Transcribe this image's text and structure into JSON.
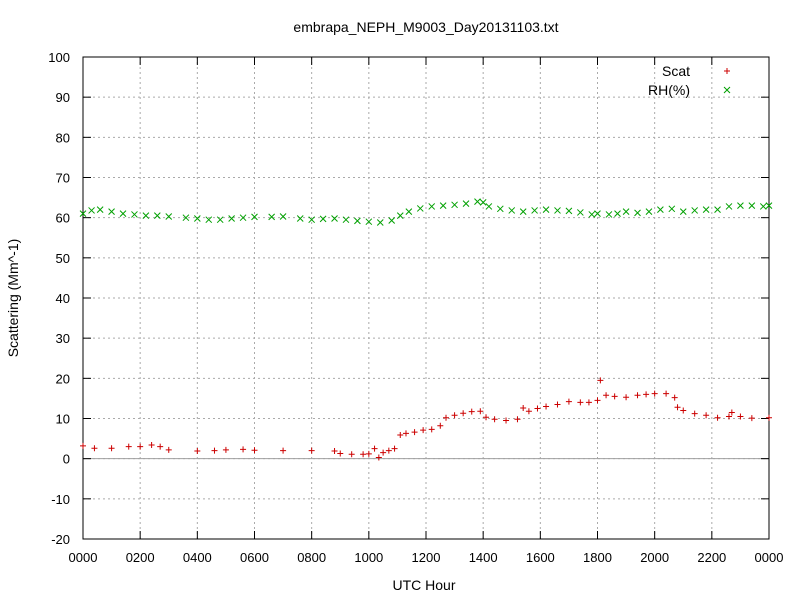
{
  "chart_data": {
    "type": "scatter",
    "title": "embrapa_NEPH_M9003_Day20131103.txt",
    "xlabel": "UTC Hour",
    "ylabel": "Scattering (Mm^-1)",
    "xlim": [
      0,
      2400
    ],
    "ylim": [
      -20,
      100
    ],
    "x_ticks": [
      "0000",
      "0200",
      "0400",
      "0600",
      "0800",
      "1000",
      "1200",
      "1400",
      "1600",
      "1800",
      "2000",
      "2200",
      "0000"
    ],
    "y_ticks": [
      "-20",
      "-10",
      "0",
      "10",
      "20",
      "30",
      "40",
      "50",
      "60",
      "70",
      "80",
      "90",
      "100"
    ],
    "grid": true,
    "zero_line": true,
    "legend_position": "top-right",
    "series": [
      {
        "name": "Scat",
        "marker": "+",
        "color": "#cc0000",
        "points": [
          [
            0,
            3.2
          ],
          [
            40,
            2.6
          ],
          [
            100,
            2.6
          ],
          [
            160,
            3.0
          ],
          [
            200,
            3.0
          ],
          [
            240,
            3.4
          ],
          [
            270,
            3.0
          ],
          [
            300,
            2.2
          ],
          [
            400,
            1.9
          ],
          [
            460,
            2.0
          ],
          [
            500,
            2.2
          ],
          [
            560,
            2.3
          ],
          [
            600,
            2.1
          ],
          [
            700,
            2.0
          ],
          [
            800,
            2.0
          ],
          [
            880,
            1.9
          ],
          [
            900,
            1.3
          ],
          [
            940,
            1.1
          ],
          [
            980,
            1.1
          ],
          [
            1000,
            1.2
          ],
          [
            1020,
            2.5
          ],
          [
            1035,
            0.3
          ],
          [
            1050,
            1.5
          ],
          [
            1070,
            2.0
          ],
          [
            1090,
            2.5
          ],
          [
            1110,
            5.9
          ],
          [
            1130,
            6.3
          ],
          [
            1160,
            6.6
          ],
          [
            1190,
            7.1
          ],
          [
            1220,
            7.3
          ],
          [
            1250,
            8.2
          ],
          [
            1270,
            10.2
          ],
          [
            1300,
            10.8
          ],
          [
            1330,
            11.3
          ],
          [
            1360,
            11.7
          ],
          [
            1390,
            11.8
          ],
          [
            1410,
            10.3
          ],
          [
            1440,
            9.8
          ],
          [
            1480,
            9.5
          ],
          [
            1520,
            9.8
          ],
          [
            1540,
            12.6
          ],
          [
            1560,
            11.8
          ],
          [
            1590,
            12.5
          ],
          [
            1620,
            13.0
          ],
          [
            1660,
            13.5
          ],
          [
            1700,
            14.2
          ],
          [
            1740,
            14.0
          ],
          [
            1770,
            14.0
          ],
          [
            1800,
            14.5
          ],
          [
            1810,
            19.5
          ],
          [
            1830,
            15.8
          ],
          [
            1860,
            15.5
          ],
          [
            1900,
            15.3
          ],
          [
            1940,
            15.8
          ],
          [
            1970,
            16.0
          ],
          [
            2000,
            16.2
          ],
          [
            2040,
            16.2
          ],
          [
            2070,
            15.2
          ],
          [
            2080,
            12.8
          ],
          [
            2100,
            12.0
          ],
          [
            2140,
            11.2
          ],
          [
            2180,
            10.8
          ],
          [
            2220,
            10.2
          ],
          [
            2260,
            10.5
          ],
          [
            2270,
            11.5
          ],
          [
            2300,
            10.5
          ],
          [
            2340,
            10.1
          ],
          [
            2400,
            10.2
          ]
        ]
      },
      {
        "name": "RH(%)",
        "marker": "x",
        "color": "#00a000",
        "points": [
          [
            0,
            61.0
          ],
          [
            30,
            61.8
          ],
          [
            60,
            62.0
          ],
          [
            100,
            61.5
          ],
          [
            140,
            61.0
          ],
          [
            180,
            60.8
          ],
          [
            220,
            60.5
          ],
          [
            260,
            60.5
          ],
          [
            300,
            60.3
          ],
          [
            360,
            60.0
          ],
          [
            400,
            59.8
          ],
          [
            440,
            59.5
          ],
          [
            480,
            59.5
          ],
          [
            520,
            59.8
          ],
          [
            560,
            60.0
          ],
          [
            600,
            60.2
          ],
          [
            660,
            60.2
          ],
          [
            700,
            60.3
          ],
          [
            760,
            59.8
          ],
          [
            800,
            59.5
          ],
          [
            840,
            59.7
          ],
          [
            880,
            59.8
          ],
          [
            920,
            59.5
          ],
          [
            960,
            59.2
          ],
          [
            1000,
            59.0
          ],
          [
            1040,
            58.8
          ],
          [
            1080,
            59.3
          ],
          [
            1110,
            60.5
          ],
          [
            1140,
            61.5
          ],
          [
            1180,
            62.3
          ],
          [
            1220,
            62.8
          ],
          [
            1260,
            63.0
          ],
          [
            1300,
            63.2
          ],
          [
            1340,
            63.5
          ],
          [
            1380,
            64.0
          ],
          [
            1400,
            63.8
          ],
          [
            1420,
            62.8
          ],
          [
            1460,
            62.2
          ],
          [
            1500,
            61.8
          ],
          [
            1540,
            61.5
          ],
          [
            1580,
            61.8
          ],
          [
            1620,
            62.0
          ],
          [
            1660,
            61.8
          ],
          [
            1700,
            61.7
          ],
          [
            1740,
            61.3
          ],
          [
            1780,
            60.8
          ],
          [
            1800,
            61.0
          ],
          [
            1840,
            60.8
          ],
          [
            1870,
            61.0
          ],
          [
            1900,
            61.5
          ],
          [
            1940,
            61.2
          ],
          [
            1980,
            61.5
          ],
          [
            2020,
            62.0
          ],
          [
            2060,
            62.2
          ],
          [
            2100,
            61.5
          ],
          [
            2140,
            61.8
          ],
          [
            2180,
            62.0
          ],
          [
            2220,
            62.0
          ],
          [
            2260,
            62.8
          ],
          [
            2300,
            63.0
          ],
          [
            2340,
            63.0
          ],
          [
            2380,
            62.8
          ],
          [
            2400,
            63.0
          ]
        ]
      }
    ]
  }
}
